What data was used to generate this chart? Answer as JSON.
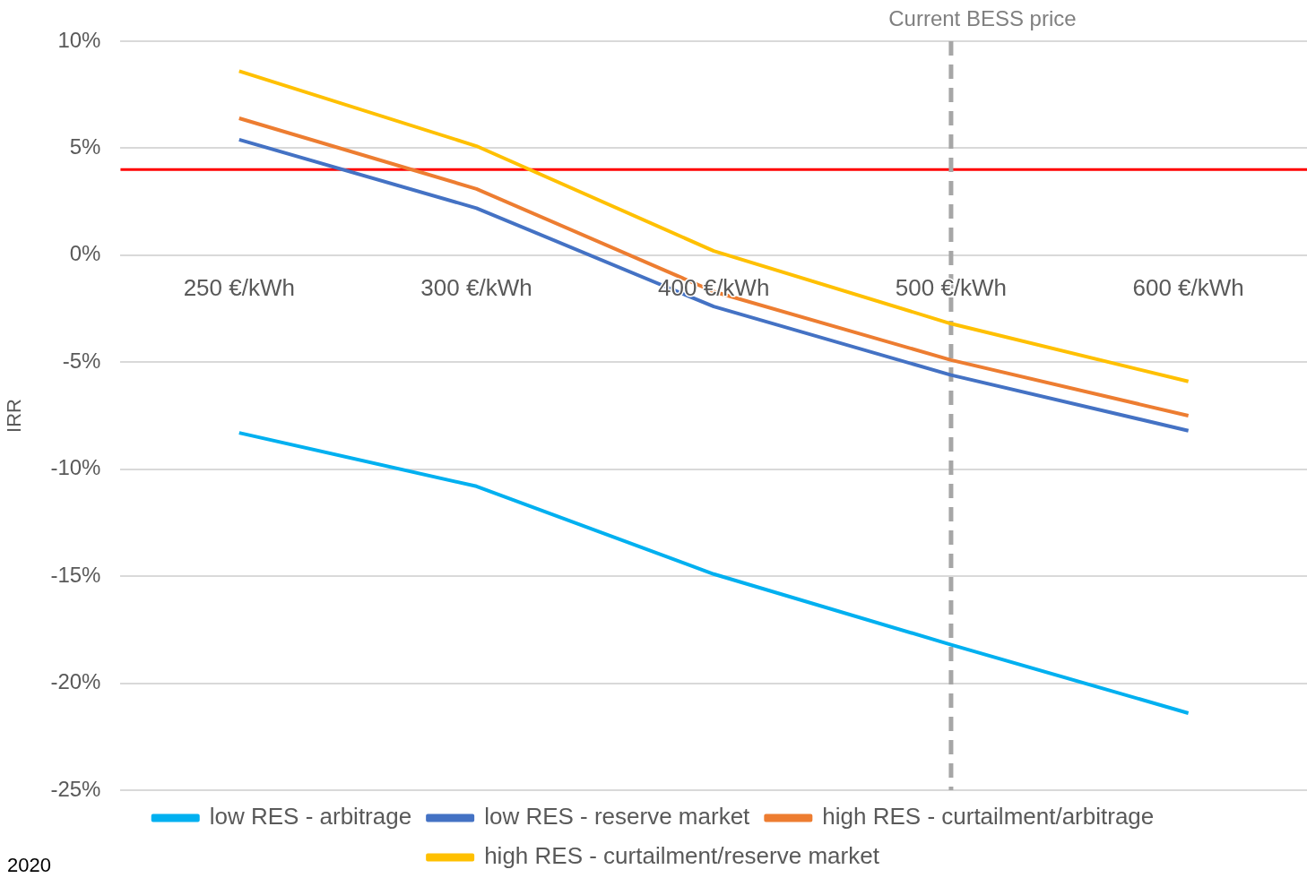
{
  "chart_data": {
    "type": "line",
    "ylabel": "IRR",
    "categories": [
      "250 €/kWh",
      "300 €/kWh",
      "400 €/kWh",
      "500 €/kWh",
      "600 €/kWh"
    ],
    "series": [
      {
        "name": "low RES - arbitrage",
        "color": "#00b0f0",
        "values": [
          -8.3,
          -10.8,
          -14.9,
          -18.2,
          -21.4
        ]
      },
      {
        "name": "low RES - reserve market",
        "color": "#4472c4",
        "values": [
          5.4,
          2.2,
          -2.4,
          -5.6,
          -8.2
        ]
      },
      {
        "name": "high RES - curtailment/arbitrage",
        "color": "#ed7d31",
        "values": [
          6.4,
          3.1,
          -1.7,
          -4.9,
          -7.5
        ]
      },
      {
        "name": "high RES - curtailment/reserve market",
        "color": "#ffc000",
        "values": [
          8.6,
          5.1,
          0.2,
          -3.2,
          -5.9
        ]
      }
    ],
    "ylim": [
      -25,
      10
    ],
    "yticks": [
      {
        "value": -25,
        "label": "-25%"
      },
      {
        "value": -20,
        "label": "-20%"
      },
      {
        "value": -15,
        "label": "-15%"
      },
      {
        "value": -10,
        "label": "-10%"
      },
      {
        "value": -5,
        "label": "-5%"
      },
      {
        "value": 0,
        "label": "0%"
      },
      {
        "value": 5,
        "label": "5%"
      },
      {
        "value": 10,
        "label": "10%"
      }
    ],
    "grid": "y",
    "legend": "bottom",
    "marker": "none",
    "line_style": "solid",
    "ref_lines": [
      {
        "axis": "y",
        "value": 4,
        "color": "#ff0000",
        "line_style": "solid"
      },
      {
        "axis": "x",
        "value": "500 €/kWh",
        "label": "Current BESS price",
        "color": "#a6a6a6",
        "line_style": "dashed"
      }
    ],
    "annotations": [
      "2020"
    ]
  }
}
